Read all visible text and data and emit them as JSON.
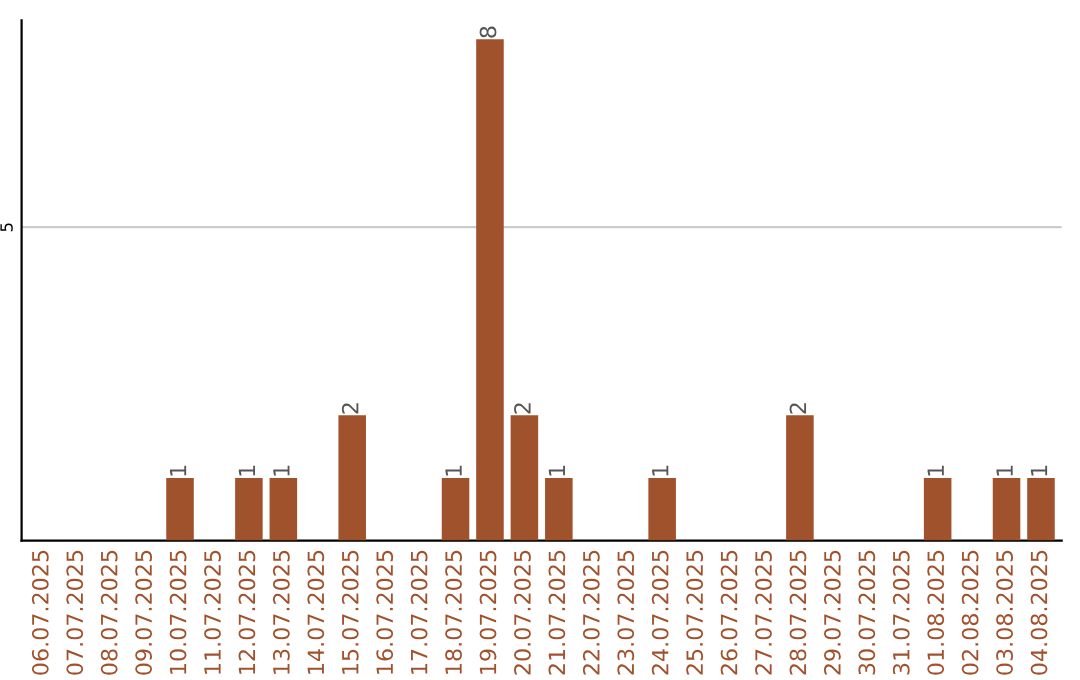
{
  "chart_data": {
    "type": "bar",
    "categories": [
      "06.07.2025",
      "07.07.2025",
      "08.07.2025",
      "09.07.2025",
      "10.07.2025",
      "11.07.2025",
      "12.07.2025",
      "13.07.2025",
      "14.07.2025",
      "15.07.2025",
      "16.07.2025",
      "17.07.2025",
      "18.07.2025",
      "19.07.2025",
      "20.07.2025",
      "21.07.2025",
      "22.07.2025",
      "23.07.2025",
      "24.07.2025",
      "25.07.2025",
      "26.07.2025",
      "27.07.2025",
      "28.07.2025",
      "29.07.2025",
      "30.07.2025",
      "31.07.2025",
      "01.08.2025",
      "02.08.2025",
      "03.08.2025",
      "04.08.2025"
    ],
    "values": [
      0,
      0,
      0,
      0,
      1,
      0,
      1,
      1,
      0,
      2,
      0,
      0,
      1,
      8,
      2,
      1,
      0,
      0,
      1,
      0,
      0,
      0,
      2,
      0,
      0,
      0,
      1,
      0,
      1,
      1
    ],
    "value_labels": [
      null,
      null,
      null,
      null,
      "1",
      null,
      "1",
      "1",
      null,
      "2",
      null,
      null,
      "1",
      "8",
      "2",
      "1",
      null,
      null,
      "1",
      null,
      null,
      null,
      "2",
      null,
      null,
      null,
      "1",
      null,
      "1",
      "1"
    ],
    "color": "#a0522d",
    "ylim": [
      0,
      8.3
    ],
    "yticks": [
      5
    ],
    "grid": "y",
    "legend": false
  }
}
